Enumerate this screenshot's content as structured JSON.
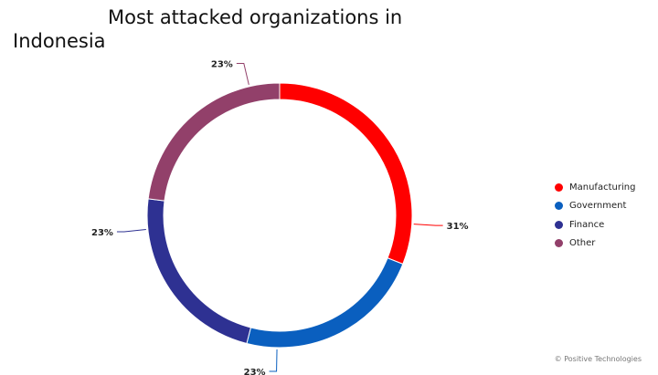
{
  "chart_data": {
    "type": "pie",
    "title_line1": "Most attacked organizations in",
    "title_line2": "Indonesia",
    "categories": [
      "Manufacturing",
      "Government",
      "Finance",
      "Other"
    ],
    "values": [
      31,
      23,
      23,
      23
    ],
    "labels": [
      "31%",
      "23%",
      "23%",
      "23%"
    ],
    "colors": [
      "#ff0000",
      "#0a5fbf",
      "#2e3192",
      "#92406a"
    ],
    "donut": true,
    "legend_position": "right"
  },
  "footer": {
    "watermark": "© Positive Technologies"
  }
}
